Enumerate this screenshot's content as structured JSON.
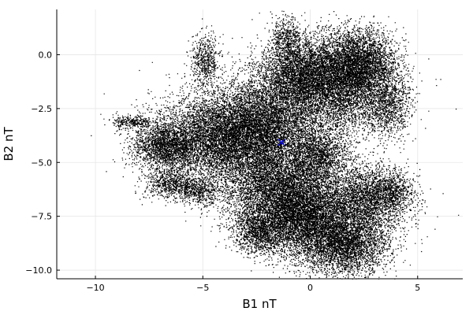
{
  "chart_data": {
    "type": "scatter",
    "title": "",
    "xlabel": "B1 nT",
    "ylabel": "B2 nT",
    "xlim": [
      -11.8,
      7.1
    ],
    "ylim": [
      -10.4,
      2.1
    ],
    "x_ticks": [
      -10,
      -5,
      0,
      5
    ],
    "x_tick_labels": [
      "−10",
      "−5",
      "0",
      "5"
    ],
    "y_ticks": [
      0.0,
      -2.5,
      -5.0,
      -7.5,
      -10.0
    ],
    "y_tick_labels": [
      "0.0",
      "−2.5",
      "−5.0",
      "−7.5",
      "−10.0"
    ],
    "grid": true,
    "legend": "none",
    "series": [
      {
        "marker": "point",
        "color": "#000000",
        "clusters": [
          {
            "x": -4.2,
            "y": -3.9,
            "sx": 1.6,
            "sy": 1.0,
            "n": 9000
          },
          {
            "x": -2.2,
            "y": -3.2,
            "sx": 1.3,
            "sy": 1.1,
            "n": 6000
          },
          {
            "x": 1.2,
            "y": -1.5,
            "sx": 1.3,
            "sy": 1.1,
            "n": 7000
          },
          {
            "x": 2.2,
            "y": -0.4,
            "sx": 0.9,
            "sy": 0.8,
            "n": 3500
          },
          {
            "x": -0.6,
            "y": -0.9,
            "sx": 0.9,
            "sy": 0.8,
            "n": 3000
          },
          {
            "x": -1.1,
            "y": 0.8,
            "sx": 0.35,
            "sy": 0.5,
            "n": 500
          },
          {
            "x": -4.9,
            "y": -0.3,
            "sx": 0.35,
            "sy": 0.6,
            "n": 600
          },
          {
            "x": -1.5,
            "y": -6.2,
            "sx": 1.3,
            "sy": 1.0,
            "n": 5500
          },
          {
            "x": -0.3,
            "y": -7.6,
            "sx": 1.1,
            "sy": 0.9,
            "n": 5000
          },
          {
            "x": 1.6,
            "y": -8.8,
            "sx": 1.0,
            "sy": 0.7,
            "n": 3500
          },
          {
            "x": 2.6,
            "y": -6.7,
            "sx": 1.0,
            "sy": 0.8,
            "n": 3000
          },
          {
            "x": -2.4,
            "y": -8.2,
            "sx": 0.6,
            "sy": 0.5,
            "n": 1200
          },
          {
            "x": -6.8,
            "y": -4.2,
            "sx": 0.7,
            "sy": 0.5,
            "n": 1800
          },
          {
            "x": -8.3,
            "y": -3.1,
            "sx": 0.45,
            "sy": 0.15,
            "n": 300
          },
          {
            "x": -6.5,
            "y": -6.0,
            "sx": 0.6,
            "sy": 0.35,
            "n": 700
          },
          {
            "x": -5.2,
            "y": -6.3,
            "sx": 0.5,
            "sy": 0.3,
            "n": 500
          },
          {
            "x": 0.4,
            "y": -4.7,
            "sx": 0.7,
            "sy": 0.6,
            "n": 1500
          },
          {
            "x": 3.6,
            "y": -2.4,
            "sx": 0.5,
            "sy": 0.7,
            "n": 900
          },
          {
            "x": 3.8,
            "y": -6.3,
            "sx": 0.5,
            "sy": 0.4,
            "n": 500
          }
        ]
      }
    ],
    "annotations": [
      {
        "label": "×",
        "x": -1.35,
        "y": -4.05,
        "color": "#0000ff"
      }
    ]
  }
}
